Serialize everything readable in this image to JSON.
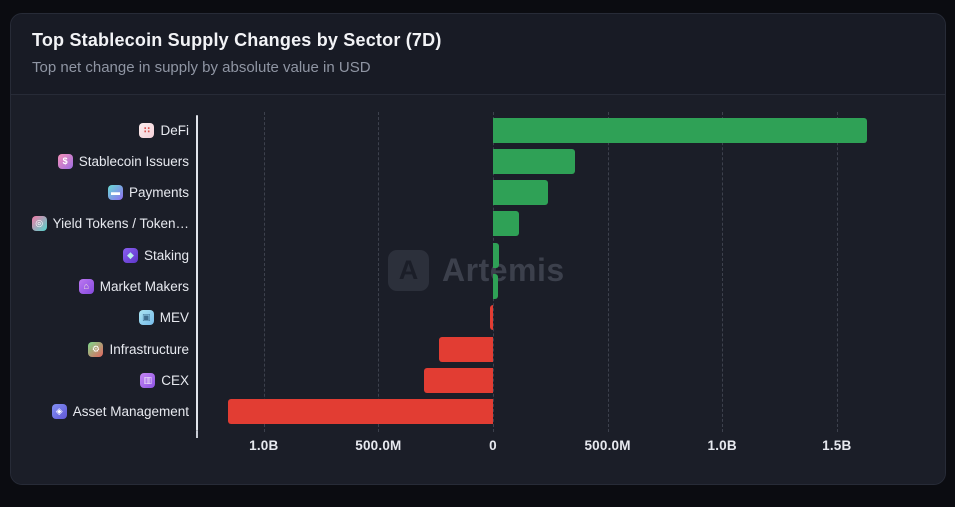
{
  "header": {
    "title": "Top Stablecoin Supply Changes by Sector (7D)",
    "subtitle": "Top net change in supply by absolute value in USD"
  },
  "watermark": {
    "brand": "Artemis",
    "logo_letter": "A"
  },
  "colors": {
    "positive_bar": "#2fa156",
    "negative_bar": "#e23d33",
    "page_bg": "#0b0c11",
    "card_bg": "#1b1e28",
    "header_bg": "#181b25",
    "grid": "#3d414d",
    "axis": "#e2e5ec",
    "title_text": "#f2f3f6",
    "subtitle_text": "#8f95a3",
    "label_text": "#e7e9ef",
    "watermark_text": "#3c404c"
  },
  "chart_data": {
    "type": "bar",
    "orientation": "horizontal",
    "title": "Top Stablecoin Supply Changes by Sector (7D)",
    "subtitle": "Top net change in supply by absolute value in USD",
    "unit": "USD",
    "values_are": "net supply change in millions of USD (estimated from gridlines)",
    "categories": [
      "DeFi",
      "Stablecoin Issuers",
      "Payments",
      "Yield Tokens / Token…",
      "Staking",
      "Market Makers",
      "MEV",
      "Infrastructure",
      "CEX",
      "Asset Management"
    ],
    "values": [
      1630,
      357,
      240,
      113,
      28,
      20,
      -14,
      -235,
      -300,
      -1155
    ],
    "icons": [
      "defi-grid-icon",
      "stablecoin-coin-icon",
      "payments-card-icon",
      "yield-token-icon",
      "staking-drop-icon",
      "market-makers-bag-icon",
      "mev-robot-icon",
      "infrastructure-gear-icon",
      "cex-bag-icon",
      "asset-management-bag-icon"
    ],
    "x_tick_labels": [
      "1.0B",
      "500.0M",
      "0",
      "500.0M",
      "1.0B",
      "1.5B"
    ],
    "x_tick_values": [
      -1000,
      -500,
      0,
      500,
      1000,
      1500
    ],
    "xlim": [
      -1300,
      1930
    ],
    "grid": "vertical-dashed",
    "legend": "none",
    "bar_color_rule": "green if positive, red if negative"
  },
  "icon_styles": {
    "defi-grid-icon": {
      "glyph": "∷",
      "fg": "#d9534f",
      "bg1": "#fceeee",
      "bg2": "#f5d0d8"
    },
    "stablecoin-coin-icon": {
      "glyph": "$",
      "fg": "#ffffff",
      "bg1": "#f591b8",
      "bg2": "#9e6ce2"
    },
    "payments-card-icon": {
      "glyph": "▬",
      "fg": "#ffffff",
      "bg1": "#67dbd2",
      "bg2": "#8f6df2"
    },
    "yield-token-icon": {
      "glyph": "◎",
      "fg": "#ffffff",
      "bg1": "#f27aa6",
      "bg2": "#52d6ce"
    },
    "staking-drop-icon": {
      "glyph": "◆",
      "fg": "#b9f0ea",
      "bg1": "#8b60f0",
      "bg2": "#5d36c9"
    },
    "market-makers-bag-icon": {
      "glyph": "⌂",
      "fg": "#f5e9d8",
      "bg1": "#bd78f2",
      "bg2": "#8449de"
    },
    "mev-robot-icon": {
      "glyph": "▣",
      "fg": "#3f6f8f",
      "bg1": "#abe5f2",
      "bg2": "#76bbea"
    },
    "infrastructure-gear-icon": {
      "glyph": "⚙",
      "fg": "#ffffff",
      "bg1": "#7ed98c",
      "bg2": "#e2645f"
    },
    "cex-bag-icon": {
      "glyph": "▥",
      "fg": "#f0e6f8",
      "bg1": "#c687f4",
      "bg2": "#8d53e4"
    },
    "asset-management-bag-icon": {
      "glyph": "◈",
      "fg": "#ffffff",
      "bg1": "#8290f2",
      "bg2": "#6057d7"
    }
  }
}
